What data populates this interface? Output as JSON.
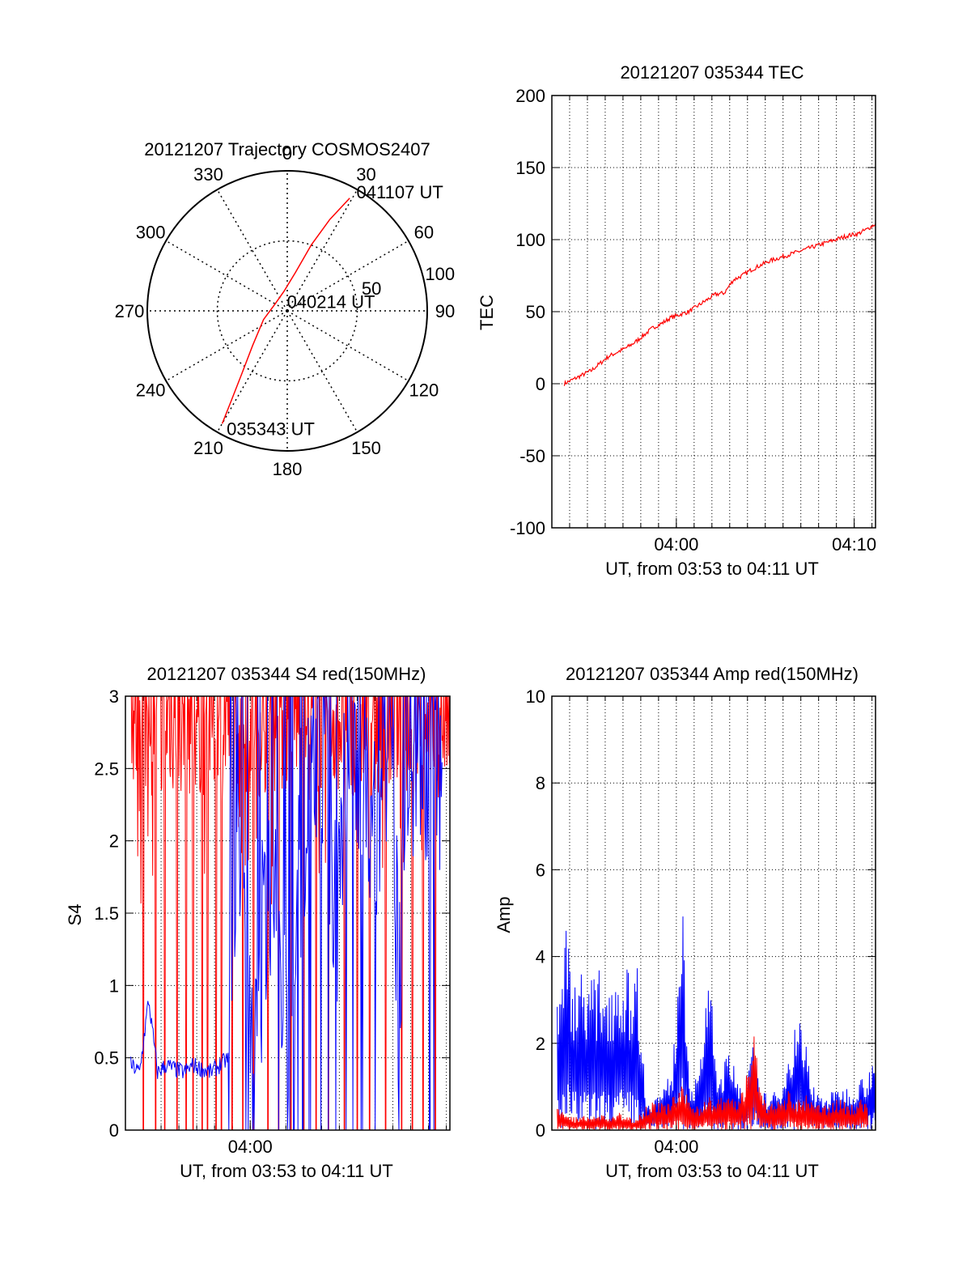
{
  "colors": {
    "red": "#ff0000",
    "blue": "#0000ff",
    "axis": "#000000",
    "grid": "#000000",
    "background": "#ffffff"
  },
  "chart_data": [
    {
      "id": "trajectory",
      "type": "polar",
      "title": "20121207 Trajectory COSMOS2407",
      "azimuth_labels": [
        "0",
        "30",
        "60",
        "90",
        "120",
        "150",
        "180",
        "210",
        "240",
        "270",
        "300",
        "330"
      ],
      "azimuth_values": [
        0,
        30,
        60,
        90,
        120,
        150,
        180,
        210,
        240,
        270,
        300,
        330
      ],
      "radial_labels": [
        "50",
        "100"
      ],
      "radial_values": [
        50,
        100
      ],
      "radial_max": 100,
      "grid": true,
      "series": [
        {
          "color": "red",
          "points": [
            [
              210,
              93
            ],
            [
              212,
              75
            ],
            [
              216,
              55
            ],
            [
              225,
              35
            ],
            [
              250,
              18
            ],
            [
              300,
              10
            ],
            [
              350,
              14
            ],
            [
              12,
              28
            ],
            [
              20,
              50
            ],
            [
              25,
              72
            ],
            [
              29,
              92
            ]
          ]
        }
      ],
      "annotations": [
        {
          "text": "041107 UT",
          "az": 29,
          "r": 92
        },
        {
          "text": "040214 UT",
          "az": 60,
          "r": 4
        },
        {
          "text": "035343 UT",
          "az": 210,
          "r": 93
        }
      ]
    },
    {
      "id": "tec",
      "type": "line",
      "title": "20121207 035344 TEC",
      "ylabel": "TEC",
      "xlabel": "UT, from 03:53 to 04:11 UT",
      "xlim": [
        53.0,
        71.2
      ],
      "ylim": [
        -100,
        200
      ],
      "yticks": [
        -100,
        -50,
        0,
        50,
        100,
        150,
        200
      ],
      "ytick_labels": [
        "-100",
        "-50",
        "0",
        "50",
        "100",
        "150",
        "200"
      ],
      "xticks": [
        60,
        70
      ],
      "xtick_labels": [
        "04:00",
        "04:10"
      ],
      "grid": true,
      "series": [
        {
          "color": "red",
          "x": [
            53.7,
            54.2,
            54.7,
            55.2,
            55.7,
            56.2,
            56.7,
            57.2,
            57.7,
            58.2,
            58.7,
            59.2,
            59.7,
            60.2,
            60.7,
            61.2,
            61.7,
            62.2,
            62.7,
            63.2,
            63.7,
            64.2,
            64.7,
            65.2,
            65.7,
            66.2,
            66.7,
            67.2,
            67.7,
            68.2,
            68.7,
            69.2,
            69.7,
            70.2,
            70.7,
            71.2
          ],
          "y": [
            0,
            3,
            6,
            9,
            14,
            19,
            22,
            25,
            29,
            34,
            39,
            42,
            46,
            48,
            50,
            54,
            58,
            62,
            63,
            72,
            75,
            79,
            82,
            85,
            87,
            89,
            91,
            93,
            95,
            97,
            99,
            101,
            103,
            104,
            107,
            111
          ]
        }
      ]
    },
    {
      "id": "s4",
      "type": "line",
      "title": "20121207 035344 S4 red(150MHz)",
      "ylabel": "S4",
      "xlabel": "UT, from 03:53 to 04:11 UT",
      "xlim": [
        53.0,
        71.2
      ],
      "ylim": [
        0,
        3
      ],
      "yticks": [
        0,
        0.5,
        1,
        1.5,
        2,
        2.5,
        3
      ],
      "ytick_labels": [
        "0",
        "0.5",
        "1",
        "1.5",
        "2",
        "2.5",
        "3"
      ],
      "xticks": [
        60
      ],
      "xtick_labels": [
        "04:00"
      ],
      "grid": true,
      "series": [
        {
          "color": "red",
          "description_free": true,
          "x_range": [
            53.3,
            71.2
          ],
          "y_base": [
            2.3,
            3.0
          ],
          "dropouts": [
            54.0,
            54.7,
            55.2,
            55.9,
            56.4,
            56.8,
            57.3,
            57.6,
            58.1,
            58.4,
            59.0,
            59.6,
            60.2,
            61.0,
            61.6,
            62.3,
            63.0,
            63.7,
            64.4,
            65.3,
            66.0,
            66.7,
            67.6,
            68.5,
            69.1,
            69.7,
            70.4
          ]
        },
        {
          "color": "blue",
          "x": [
            53.3,
            53.8,
            54.3,
            54.8,
            55.3,
            55.8,
            56.3,
            56.8,
            57.3,
            57.8,
            58.3,
            58.8,
            59.3,
            59.8,
            60.3,
            60.8,
            61.3,
            61.8,
            62.3,
            62.8,
            63.3,
            63.8,
            64.3,
            64.8,
            65.3,
            65.8,
            66.3,
            66.8,
            67.3,
            67.8,
            68.3,
            68.8,
            69.3,
            69.8,
            70.3,
            70.8
          ],
          "y": [
            0.45,
            0.4,
            0.9,
            0.4,
            0.45,
            0.42,
            0.4,
            0.45,
            0.42,
            0.4,
            0.45,
            0.5,
            2.5,
            1.0,
            0.4,
            1.5,
            2.0,
            0.8,
            0.5,
            1.8,
            2.5,
            2.8,
            2.2,
            1.5,
            2.6,
            2.9,
            2.5,
            2.0,
            2.4,
            2.8,
            1.0,
            2.0,
            2.8,
            2.5,
            2.9,
            2.3
          ]
        }
      ]
    },
    {
      "id": "amp",
      "type": "line",
      "title": "20121207 035344 Amp red(150MHz)",
      "ylabel": "Amp",
      "xlabel": "UT, from 03:53 to 04:11 UT",
      "xlim": [
        53.0,
        71.2
      ],
      "ylim": [
        0,
        10
      ],
      "yticks": [
        0,
        2,
        4,
        6,
        8,
        10
      ],
      "ytick_labels": [
        "0",
        "2",
        "4",
        "6",
        "8",
        "10"
      ],
      "xticks": [
        60
      ],
      "xtick_labels": [
        "04:00"
      ],
      "grid": true,
      "series": [
        {
          "color": "blue",
          "x": [
            53.3,
            53.8,
            54.3,
            54.8,
            55.3,
            55.8,
            56.3,
            56.8,
            57.3,
            57.8,
            58.3,
            58.8,
            59.3,
            59.8,
            60.3,
            60.8,
            61.3,
            61.8,
            62.3,
            62.8,
            63.3,
            63.8,
            64.3,
            64.8,
            65.3,
            65.8,
            66.3,
            66.8,
            67.3,
            67.8,
            68.3,
            68.8,
            69.3,
            69.8,
            70.3,
            70.8,
            71.2
          ],
          "y": [
            3.3,
            4.7,
            3.6,
            3.9,
            3.5,
            3.8,
            3.6,
            3.9,
            3.7,
            4.0,
            0.7,
            0.8,
            1.0,
            1.5,
            5.6,
            1.0,
            1.3,
            4.2,
            1.1,
            1.8,
            1.6,
            0.8,
            2.0,
            0.9,
            0.8,
            1.0,
            1.7,
            2.8,
            2.0,
            0.9,
            0.8,
            0.9,
            1.0,
            1.0,
            1.2,
            1.4,
            2.0
          ]
        },
        {
          "color": "red",
          "x": [
            53.3,
            53.8,
            54.3,
            54.8,
            55.3,
            55.8,
            56.3,
            56.8,
            57.3,
            57.8,
            58.3,
            58.8,
            59.3,
            59.8,
            60.3,
            60.8,
            61.3,
            61.8,
            62.3,
            62.8,
            63.3,
            63.8,
            64.3,
            64.8,
            65.3,
            65.8,
            66.3,
            66.8,
            67.3,
            67.8,
            68.3,
            68.8,
            69.3,
            69.8,
            70.3,
            70.8
          ],
          "y": [
            0.5,
            0.4,
            0.3,
            0.4,
            0.3,
            0.4,
            0.3,
            0.4,
            0.3,
            0.3,
            0.6,
            0.7,
            0.6,
            0.8,
            1.0,
            0.7,
            0.6,
            0.8,
            0.7,
            0.9,
            0.7,
            1.0,
            2.4,
            0.8,
            0.6,
            0.7,
            0.9,
            0.7,
            0.8,
            0.6,
            0.6,
            0.7,
            0.7,
            0.6,
            0.7,
            0.8
          ]
        }
      ]
    }
  ]
}
